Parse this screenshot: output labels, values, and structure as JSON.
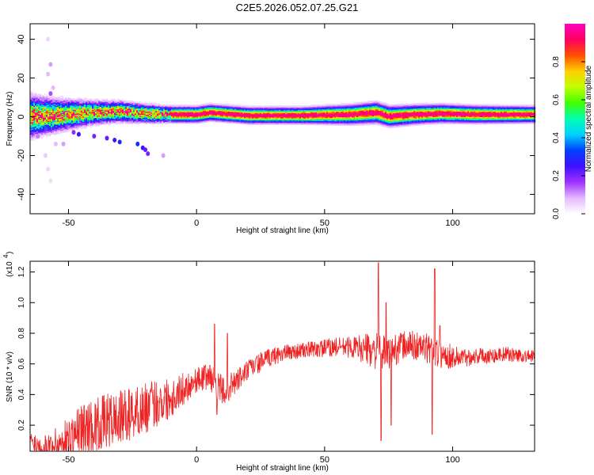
{
  "figure": {
    "title": "C2E5.2026.052.07.25.G21"
  },
  "chart_data": [
    {
      "type": "heatmap",
      "name": "spectrogram",
      "xlabel": "Height of straight line (km)",
      "ylabel": "Frequency (Hz)",
      "xlim": [
        -65,
        132
      ],
      "ylim": [
        -50,
        48
      ],
      "xticks": [
        -50,
        0,
        50,
        100
      ],
      "xtick_labels": [
        "-50",
        "0",
        "50",
        "100"
      ],
      "yticks": [
        -40,
        -20,
        0,
        20,
        40
      ],
      "ytick_labels": [
        "-40",
        "-20",
        "0",
        "20",
        "40"
      ],
      "colorbar": {
        "label": "Normalized spectral amplitude",
        "range": [
          0,
          1
        ],
        "ticks": [
          0.0,
          0.2,
          0.4,
          0.6,
          0.8
        ],
        "tick_labels": [
          "0.0",
          "0.2",
          "0.4",
          "0.6",
          "0.8"
        ],
        "colors": [
          "#ffffff",
          "#e4b8ff",
          "#a030ff",
          "#4010ff",
          "#0040ff",
          "#00d0ff",
          "#00ffb0",
          "#40ff00",
          "#c0ff00",
          "#ffd000",
          "#ff5000",
          "#ff0060",
          "#ff00c0"
        ]
      },
      "band": {
        "center_hz": [
          [
            -65,
            0
          ],
          [
            -55,
            0.5
          ],
          [
            -40,
            2
          ],
          [
            -30,
            2.5
          ],
          [
            -20,
            1.5
          ],
          [
            -10,
            1
          ],
          [
            0,
            1
          ],
          [
            5,
            2
          ],
          [
            10,
            1.5
          ],
          [
            20,
            0.5
          ],
          [
            40,
            0.5
          ],
          [
            60,
            1
          ],
          [
            70,
            2
          ],
          [
            75,
            0
          ],
          [
            85,
            1
          ],
          [
            95,
            1.5
          ],
          [
            110,
            1
          ],
          [
            132,
            1
          ]
        ],
        "half_width_hz": [
          [
            -65,
            9
          ],
          [
            -55,
            7
          ],
          [
            -40,
            5
          ],
          [
            -20,
            4
          ],
          [
            -10,
            3.5
          ],
          [
            0,
            3.5
          ],
          [
            40,
            3.5
          ],
          [
            70,
            4.5
          ],
          [
            90,
            4
          ],
          [
            132,
            3.5
          ]
        ]
      },
      "scatter_specks": [
        {
          "x": -58,
          "y": 40,
          "v": 0.05
        },
        {
          "x": -57,
          "y": 27,
          "v": 0.1
        },
        {
          "x": -58,
          "y": 22,
          "v": 0.08
        },
        {
          "x": -57,
          "y": 12,
          "v": 0.15
        },
        {
          "x": -56,
          "y": 15,
          "v": 0.08
        },
        {
          "x": -59,
          "y": -20,
          "v": 0.06
        },
        {
          "x": -58,
          "y": -27,
          "v": 0.05
        },
        {
          "x": -57,
          "y": -33,
          "v": 0.04
        },
        {
          "x": -55,
          "y": -14,
          "v": 0.08
        },
        {
          "x": -48,
          "y": -8,
          "v": 0.18
        },
        {
          "x": -46,
          "y": -9,
          "v": 0.25
        },
        {
          "x": -40,
          "y": -10,
          "v": 0.2
        },
        {
          "x": -35,
          "y": -11,
          "v": 0.22
        },
        {
          "x": -32,
          "y": -12,
          "v": 0.25
        },
        {
          "x": -30,
          "y": -13,
          "v": 0.3
        },
        {
          "x": -23,
          "y": -14,
          "v": 0.3
        },
        {
          "x": -21,
          "y": -16,
          "v": 0.25
        },
        {
          "x": -20,
          "y": -17,
          "v": 0.22
        },
        {
          "x": -19,
          "y": -19,
          "v": 0.2
        },
        {
          "x": -13,
          "y": -20,
          "v": 0.1
        },
        {
          "x": -62,
          "y": -10,
          "v": 0.12
        },
        {
          "x": -60,
          "y": 9,
          "v": 0.12
        },
        {
          "x": -45,
          "y": 8,
          "v": 0.1
        },
        {
          "x": -52,
          "y": -14,
          "v": 0.1
        }
      ]
    },
    {
      "type": "line",
      "name": "snr",
      "xlabel": "Height of straight line (km)",
      "ylabel": "SNR (10 * v/v)",
      "multiplier_label": "(x10",
      "multiplier_exp": "4",
      "xlim": [
        -65,
        132
      ],
      "ylim": [
        0.03,
        1.27
      ],
      "xticks": [
        -50,
        0,
        50,
        100
      ],
      "xtick_labels": [
        "-50",
        "0",
        "50",
        "100"
      ],
      "yticks": [
        0.2,
        0.4,
        0.6,
        0.8,
        1.0,
        1.2
      ],
      "ytick_labels": [
        "0.2",
        "0.4",
        "0.6",
        "0.8",
        "1.0",
        "1.2"
      ],
      "color": "#ee2222",
      "baseline": [
        [
          -65,
          0.12
        ],
        [
          -60,
          0.08
        ],
        [
          -55,
          0.1
        ],
        [
          -50,
          0.15
        ],
        [
          -45,
          0.22
        ],
        [
          -40,
          0.25
        ],
        [
          -35,
          0.28
        ],
        [
          -30,
          0.3
        ],
        [
          -25,
          0.33
        ],
        [
          -20,
          0.36
        ],
        [
          -15,
          0.4
        ],
        [
          -10,
          0.42
        ],
        [
          -5,
          0.47
        ],
        [
          0,
          0.52
        ],
        [
          5,
          0.55
        ],
        [
          10,
          0.45
        ],
        [
          15,
          0.5
        ],
        [
          20,
          0.58
        ],
        [
          25,
          0.63
        ],
        [
          30,
          0.67
        ],
        [
          35,
          0.69
        ],
        [
          40,
          0.7
        ],
        [
          45,
          0.71
        ],
        [
          50,
          0.72
        ],
        [
          55,
          0.73
        ],
        [
          60,
          0.73
        ],
        [
          65,
          0.73
        ],
        [
          70,
          0.72
        ],
        [
          75,
          0.7
        ],
        [
          80,
          0.75
        ],
        [
          85,
          0.75
        ],
        [
          90,
          0.73
        ],
        [
          95,
          0.7
        ],
        [
          100,
          0.67
        ],
        [
          105,
          0.66
        ],
        [
          110,
          0.67
        ],
        [
          115,
          0.67
        ],
        [
          120,
          0.68
        ],
        [
          125,
          0.67
        ],
        [
          132,
          0.66
        ]
      ],
      "noise_amplitude": [
        [
          -65,
          0.06
        ],
        [
          -55,
          0.12
        ],
        [
          -45,
          0.18
        ],
        [
          -30,
          0.18
        ],
        [
          -15,
          0.16
        ],
        [
          0,
          0.08
        ],
        [
          10,
          0.1
        ],
        [
          20,
          0.07
        ],
        [
          40,
          0.05
        ],
        [
          60,
          0.07
        ],
        [
          70,
          0.12
        ],
        [
          80,
          0.1
        ],
        [
          95,
          0.1
        ],
        [
          105,
          0.06
        ],
        [
          132,
          0.04
        ]
      ],
      "features": [
        {
          "x": 7,
          "y": 0.86
        },
        {
          "x": 8,
          "y": 0.27
        },
        {
          "x": 12,
          "y": 0.8
        },
        {
          "x": 71,
          "y": 1.26
        },
        {
          "x": 72,
          "y": 0.1
        },
        {
          "x": 74,
          "y": 1.0
        },
        {
          "x": 76,
          "y": 0.2
        },
        {
          "x": 92,
          "y": 0.14
        },
        {
          "x": 93,
          "y": 1.22
        },
        {
          "x": 95,
          "y": 0.85
        }
      ]
    }
  ]
}
